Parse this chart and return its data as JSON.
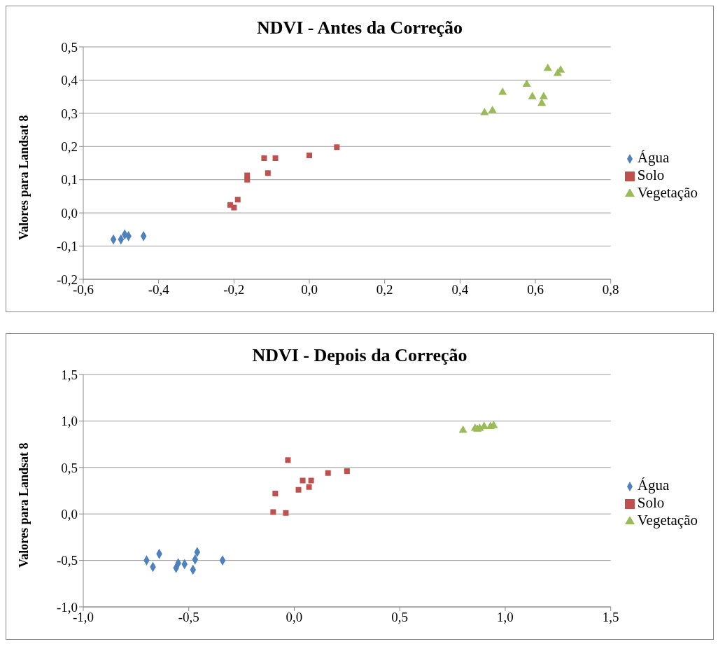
{
  "chart_data": [
    {
      "type": "scatter",
      "title": "NDVI - Antes da Correção",
      "ylabel": "Valores para Landsat 8",
      "grid": "y",
      "legend": "right",
      "xlim": [
        -0.6,
        0.8
      ],
      "xticks": [
        {
          "value": -0.6,
          "label": "-0,6"
        },
        {
          "value": -0.4,
          "label": "-0,4"
        },
        {
          "value": -0.2,
          "label": "-0,2"
        },
        {
          "value": 0,
          "label": "0,0"
        },
        {
          "value": 0.2,
          "label": "0,2"
        },
        {
          "value": 0.4,
          "label": "0,4"
        },
        {
          "value": 0.6,
          "label": "0,6"
        },
        {
          "value": 0.8,
          "label": "0,8"
        }
      ],
      "ylim": [
        -0.2,
        0.5
      ],
      "yticks": [
        {
          "value": -0.2,
          "label": "-0,2"
        },
        {
          "value": -0.1,
          "label": "-0,1"
        },
        {
          "value": 0,
          "label": "0,0"
        },
        {
          "value": 0.1,
          "label": "0,1"
        },
        {
          "value": 0.2,
          "label": "0,2"
        },
        {
          "value": 0.3,
          "label": "0,3"
        },
        {
          "value": 0.4,
          "label": "0,4"
        },
        {
          "value": 0.5,
          "label": "0,5"
        }
      ],
      "series": [
        {
          "name": "Água",
          "color": "#4f81bd",
          "marker": "diamond",
          "x": [
            -0.52,
            -0.5,
            -0.49,
            -0.48,
            -0.44
          ],
          "values": [
            -0.08,
            -0.08,
            -0.065,
            -0.07,
            -0.07
          ]
        },
        {
          "name": "Solo",
          "color": "#c0504d",
          "marker": "square",
          "x": [
            -0.21,
            -0.2,
            -0.19,
            -0.165,
            -0.165,
            -0.12,
            -0.11,
            -0.09,
            0.0,
            0.073
          ],
          "values": [
            0.024,
            0.016,
            0.04,
            0.113,
            0.1,
            0.165,
            0.12,
            0.165,
            0.173,
            0.198
          ]
        },
        {
          "name": "Vegetação",
          "color": "#9bbb59",
          "marker": "triangle",
          "x": [
            0.465,
            0.486,
            0.513,
            0.577,
            0.592,
            0.617,
            0.622,
            0.633,
            0.659,
            0.667
          ],
          "values": [
            0.302,
            0.308,
            0.363,
            0.387,
            0.35,
            0.33,
            0.35,
            0.435,
            0.42,
            0.43
          ]
        }
      ]
    },
    {
      "type": "scatter",
      "title": "NDVI - Depois da Correção",
      "ylabel": "Valores para Landsat 8",
      "grid": "y",
      "legend": "right",
      "xlim": [
        -1,
        1.5
      ],
      "xticks": [
        {
          "value": -1,
          "label": "-1,0"
        },
        {
          "value": -0.5,
          "label": "-0,5"
        },
        {
          "value": 0,
          "label": "0,0"
        },
        {
          "value": 0.5,
          "label": "0,5"
        },
        {
          "value": 1,
          "label": "1,0"
        },
        {
          "value": 1.5,
          "label": "1,5"
        }
      ],
      "ylim": [
        -1,
        1.5
      ],
      "yticks": [
        {
          "value": -1,
          "label": "-1,0"
        },
        {
          "value": -0.5,
          "label": "-0,5"
        },
        {
          "value": 0,
          "label": "0,0"
        },
        {
          "value": 0.5,
          "label": "0,5"
        },
        {
          "value": 1,
          "label": "1,0"
        },
        {
          "value": 1.5,
          "label": "1,5"
        }
      ],
      "series": [
        {
          "name": "Água",
          "color": "#4f81bd",
          "marker": "diamond",
          "x": [
            -0.7,
            -0.67,
            -0.64,
            -0.56,
            -0.55,
            -0.52,
            -0.48,
            -0.47,
            -0.46,
            -0.34
          ],
          "values": [
            -0.5,
            -0.57,
            -0.43,
            -0.58,
            -0.53,
            -0.54,
            -0.6,
            -0.49,
            -0.41,
            -0.5
          ]
        },
        {
          "name": "Solo",
          "color": "#c0504d",
          "marker": "square",
          "x": [
            -0.09,
            -0.1,
            -0.04,
            -0.03,
            0.02,
            0.04,
            0.08,
            0.07,
            0.16,
            0.25
          ],
          "values": [
            0.22,
            0.02,
            0.01,
            0.58,
            0.26,
            0.36,
            0.36,
            0.29,
            0.44,
            0.46
          ]
        },
        {
          "name": "Vegetação",
          "color": "#9bbb59",
          "marker": "triangle",
          "x": [
            0.8,
            0.857,
            0.868,
            0.879,
            0.9,
            0.92,
            0.93,
            0.945
          ],
          "values": [
            0.9,
            0.92,
            0.91,
            0.92,
            0.94,
            null,
            0.94,
            0.95
          ]
        }
      ]
    }
  ]
}
